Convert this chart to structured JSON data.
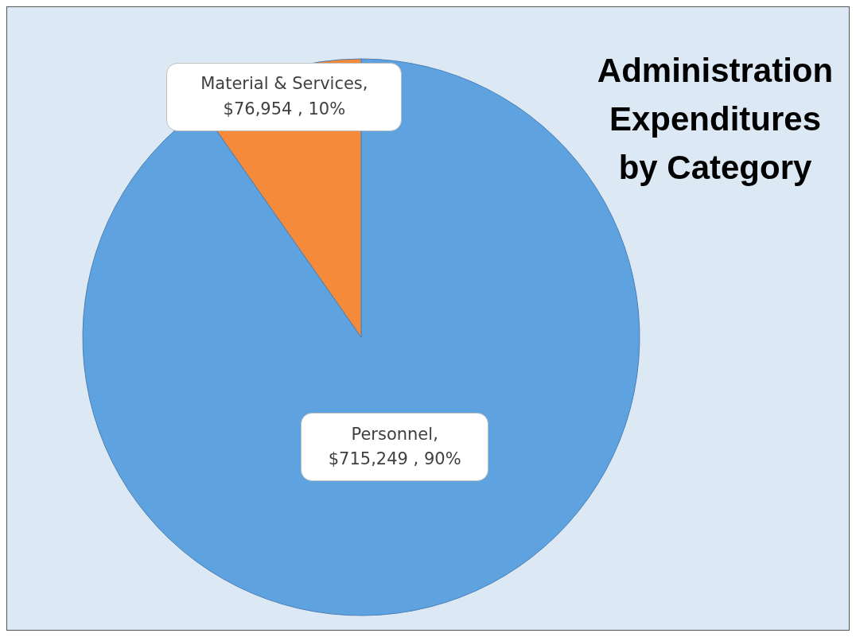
{
  "chart_data": {
    "type": "pie",
    "title": "Administration Expenditures by Category",
    "categories": [
      "Personnel",
      "Material & Services"
    ],
    "values": [
      715249,
      76954
    ],
    "colors": [
      "#5ea3e0",
      "#f58b3a"
    ],
    "value_labels": [
      ",\n$715,249 , 90%",
      ",\n$76,954 , 10%"
    ],
    "legend": false
  }
}
